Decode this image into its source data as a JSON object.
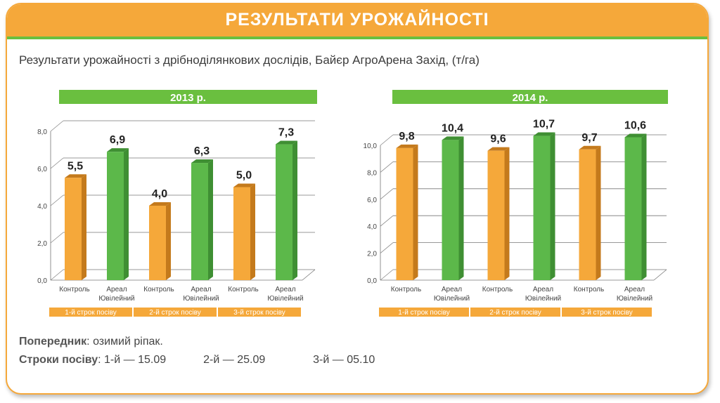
{
  "header": {
    "title": "РЕЗУЛЬТАТИ УРОЖАЙНОСТІ"
  },
  "subtitle": "Результати урожайності з дрібноділянкових дослідів, Байєр АгроАрена Захід, (т/га)",
  "colors": {
    "orange": "#f5a83a",
    "green": "#6abf3f",
    "green_bar": "#5cb84a",
    "green_dark": "#3f8f33",
    "orange_dark": "#c47a1c"
  },
  "chart_data": [
    {
      "type": "bar",
      "title": "2013 р.",
      "categories": [
        "Контроль",
        "Ареал Ювілейний",
        "Контроль",
        "Ареал Ювілейний",
        "Контроль",
        "Ареал Ювілейний"
      ],
      "groups": [
        "1-й строк посіву",
        "2-й строк посіву",
        "3-й строк посіву"
      ],
      "values": [
        5.5,
        6.9,
        4.0,
        6.3,
        5.0,
        7.3
      ],
      "value_labels": [
        "5,5",
        "6,9",
        "4,0",
        "6,3",
        "5,0",
        "7,3"
      ],
      "yticks": [
        "0,0",
        "2,0",
        "4,0",
        "6,0",
        "8,0"
      ],
      "ylim": [
        0,
        8
      ],
      "grid": true
    },
    {
      "type": "bar",
      "title": "2014 р.",
      "categories": [
        "Контроль",
        "Ареал Ювілейний",
        "Контроль",
        "Ареал Ювілейний",
        "Контроль",
        "Ареал Ювілейний"
      ],
      "groups": [
        "1-й строк посіву",
        "2-й строк посіву",
        "3-й строк посіву"
      ],
      "values": [
        9.8,
        10.4,
        9.6,
        10.7,
        9.7,
        10.6
      ],
      "value_labels": [
        "9,8",
        "10,4",
        "9,6",
        "10,7",
        "9,7",
        "10,6"
      ],
      "yticks": [
        "0,0",
        "2,0",
        "4,0",
        "6,0",
        "8,0",
        "10,0"
      ],
      "ylim": [
        0,
        10
      ],
      "grid": true
    }
  ],
  "notes": {
    "predecessor_label": "Попередник",
    "predecessor_value": ": озимий ріпак.",
    "sowing_label": "Строки посіву",
    "sowing_1": ": 1-й — 15.09",
    "sowing_2": "2-й — 25.09",
    "sowing_3": "3-й — 05.10"
  }
}
